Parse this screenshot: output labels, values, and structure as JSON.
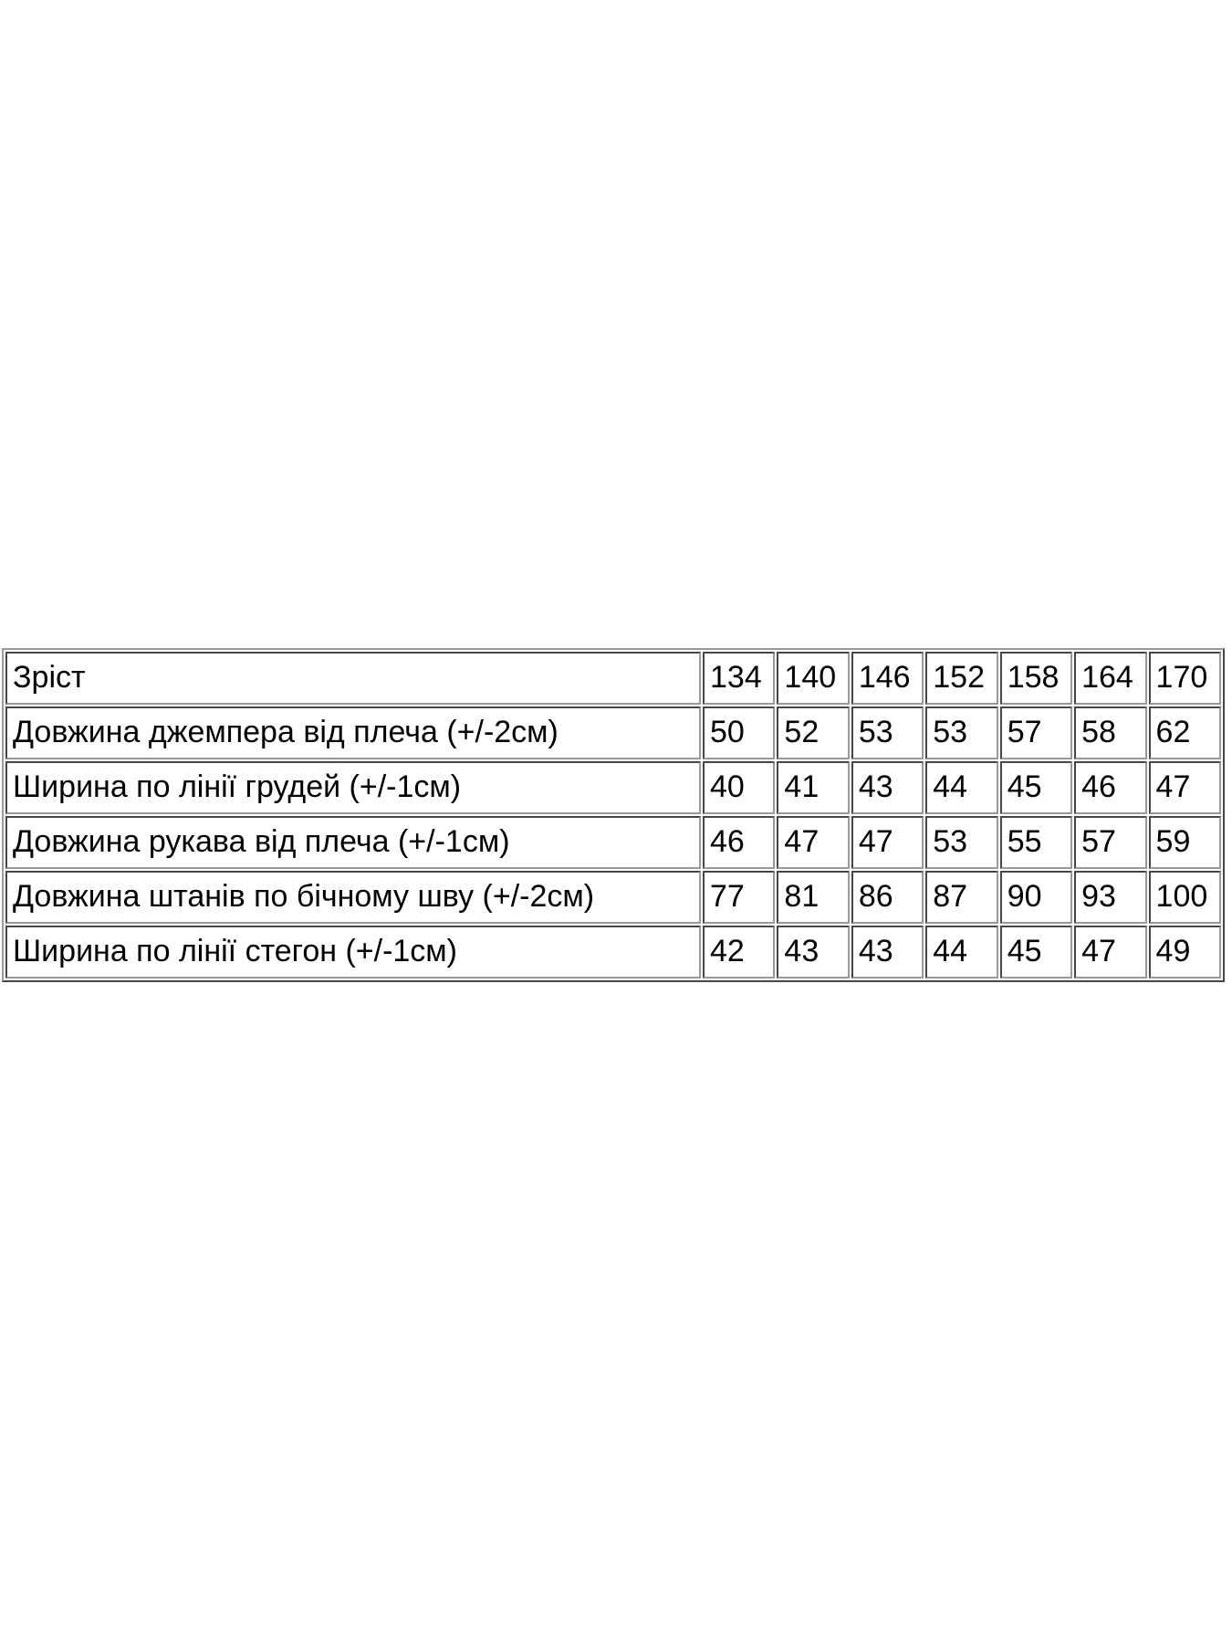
{
  "page": {
    "background_color": "#ffffff",
    "table_border_color": "#9a9a9a",
    "text_color": "#000000"
  },
  "size_table": {
    "header_label": "Зріст",
    "sizes": [
      "134",
      "140",
      "146",
      "152",
      "158",
      "164",
      "170"
    ],
    "rows": [
      {
        "label": "Довжина джемпера від плеча (+/-2см)",
        "values": [
          "50",
          "52",
          "53",
          "53",
          "57",
          "58",
          "62"
        ]
      },
      {
        "label": "Ширина по лінії грудей (+/-1см)",
        "values": [
          "40",
          "41",
          "43",
          "44",
          "45",
          "46",
          "47"
        ]
      },
      {
        "label": "Довжина рукава від плеча (+/-1см)",
        "values": [
          "46",
          "47",
          "47",
          "53",
          "55",
          "57",
          "59"
        ]
      },
      {
        "label": "Довжина штанів по бічному шву (+/-2см)",
        "values": [
          "77",
          "81",
          "86",
          "87",
          "90",
          "93",
          "100"
        ]
      },
      {
        "label": "Ширина по лінії стегон (+/-1см)",
        "values": [
          "42",
          "43",
          "43",
          "44",
          "45",
          "47",
          "49"
        ]
      }
    ]
  },
  "chart_data": {
    "type": "table",
    "title": "",
    "columns": [
      "Зріст",
      "134",
      "140",
      "146",
      "152",
      "158",
      "164",
      "170"
    ],
    "rows": [
      [
        "Довжина джемпера від плеча (+/-2см)",
        50,
        52,
        53,
        53,
        57,
        58,
        62
      ],
      [
        "Ширина по лінії грудей (+/-1см)",
        40,
        41,
        43,
        44,
        45,
        46,
        47
      ],
      [
        "Довжина рукава від плеча (+/-1см)",
        46,
        47,
        47,
        53,
        55,
        57,
        59
      ],
      [
        "Довжина штанів по бічному шву (+/-2см)",
        77,
        81,
        86,
        87,
        90,
        93,
        100
      ],
      [
        "Ширина по лінії стегон (+/-1см)",
        42,
        43,
        43,
        44,
        45,
        47,
        49
      ]
    ],
    "layout": {
      "grid": true,
      "header_row": true,
      "first_column_is_label": true
    }
  }
}
